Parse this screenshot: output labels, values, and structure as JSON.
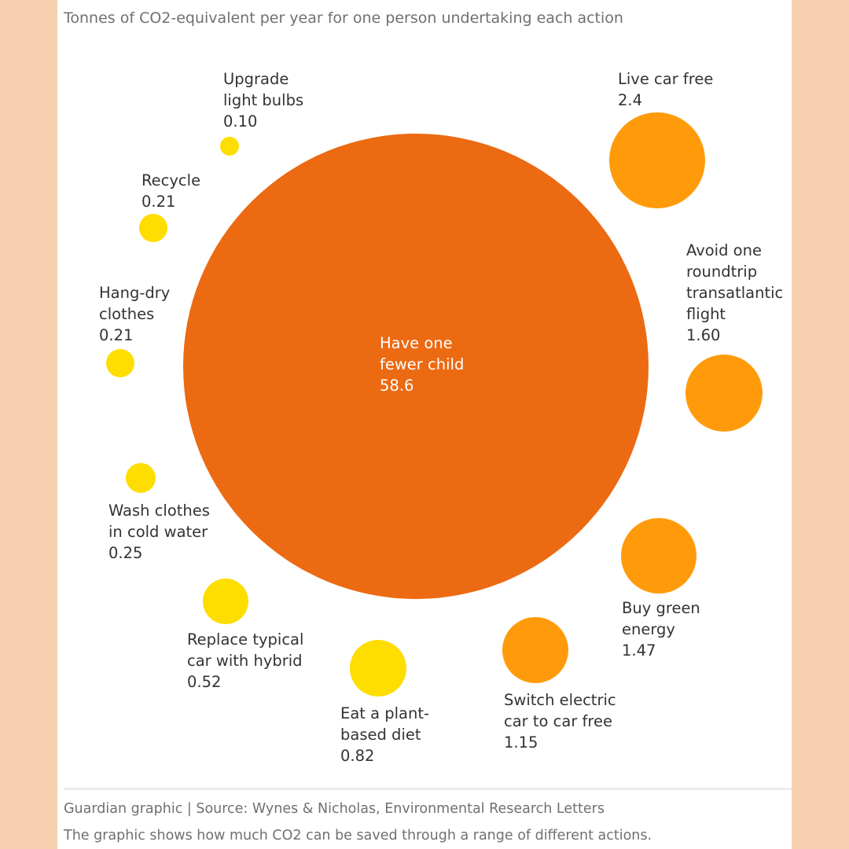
{
  "chart_data": {
    "type": "bubble",
    "title": "Tonnes of CO2-equivalent per year for one person undertaking each action",
    "unit": "tonnes CO2e per year",
    "items": [
      {
        "label_lines": [
          "Have one",
          "fewer child"
        ],
        "value": "58.6",
        "amount": 58.6,
        "color": "#ec6a12"
      },
      {
        "label_lines": [
          "Live car free"
        ],
        "value": "2.4",
        "amount": 2.4,
        "color": "#ff9b0b"
      },
      {
        "label_lines": [
          "Avoid one",
          "roundtrip",
          "transatlantic",
          "flight"
        ],
        "value": "1.60",
        "amount": 1.6,
        "color": "#ff9b0b"
      },
      {
        "label_lines": [
          "Buy green",
          "energy"
        ],
        "value": "1.47",
        "amount": 1.47,
        "color": "#ff9b0b"
      },
      {
        "label_lines": [
          "Switch electric",
          "car to car free"
        ],
        "value": "1.15",
        "amount": 1.15,
        "color": "#ff9b0b"
      },
      {
        "label_lines": [
          "Eat a plant-",
          "based diet"
        ],
        "value": "0.82",
        "amount": 0.82,
        "color": "#fedd00"
      },
      {
        "label_lines": [
          "Replace typical",
          "car with hybrid"
        ],
        "value": "0.52",
        "amount": 0.52,
        "color": "#fedd00"
      },
      {
        "label_lines": [
          "Wash clothes",
          "in cold water"
        ],
        "value": "0.25",
        "amount": 0.25,
        "color": "#fedd00"
      },
      {
        "label_lines": [
          "Hang-dry",
          "clothes"
        ],
        "value": "0.21",
        "amount": 0.21,
        "color": "#fedd00"
      },
      {
        "label_lines": [
          "Recycle"
        ],
        "value": "0.21",
        "amount": 0.21,
        "color": "#fedd00"
      },
      {
        "label_lines": [
          "Upgrade",
          "light bulbs"
        ],
        "value": "0.10",
        "amount": 0.1,
        "color": "#fedd00"
      }
    ]
  },
  "footer": {
    "source": "Guardian graphic | Source: Wynes & Nicholas, Environmental Research Letters",
    "caption": "The graphic shows how much CO2 can be saved through a range of different actions."
  }
}
